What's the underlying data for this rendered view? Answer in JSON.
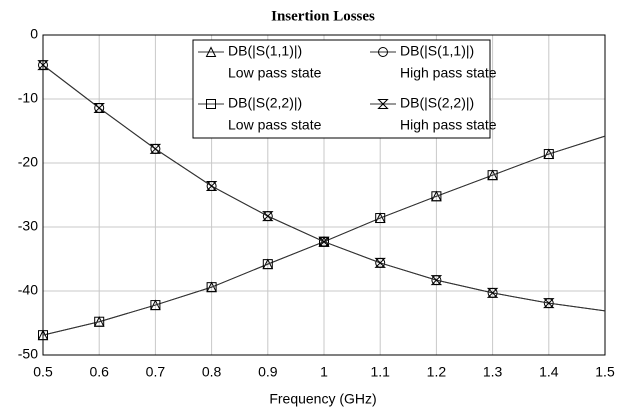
{
  "chart_data": {
    "type": "line",
    "title": "Insertion Losses",
    "x_label": "Frequency (GHz)",
    "x": [
      0.5,
      0.6,
      0.7,
      0.8,
      0.9,
      1.0,
      1.1,
      1.2,
      1.3,
      1.4,
      1.5
    ],
    "series": [
      {
        "name": "DB(|S(1,1)|)",
        "state": "Low pass state",
        "marker": "triangle",
        "color": "#000000",
        "values": [
          -46.9,
          -44.8,
          -42.2,
          -39.4,
          -35.8,
          -32.3,
          -28.6,
          -25.2,
          -21.9,
          -18.6,
          -15.8
        ]
      },
      {
        "name": "DB(|S(1,1)|)",
        "state": "High pass state",
        "marker": "circle",
        "color": "#000000",
        "values": [
          -4.7,
          -11.4,
          -17.8,
          -23.6,
          -28.3,
          -32.3,
          -35.6,
          -38.3,
          -40.3,
          -41.9,
          -43.1
        ]
      },
      {
        "name": "DB(|S(2,2)|)",
        "state": "Low pass state",
        "marker": "square",
        "color": "#000000",
        "values": [
          -46.9,
          -44.8,
          -42.2,
          -39.4,
          -35.8,
          -32.3,
          -28.6,
          -25.2,
          -21.9,
          -18.6,
          -15.8
        ]
      },
      {
        "name": "DB(|S(2,2)|)",
        "state": "High pass state",
        "marker": "hourglass",
        "color": "#000000",
        "values": [
          -4.7,
          -11.4,
          -17.8,
          -23.6,
          -28.3,
          -32.3,
          -35.6,
          -38.3,
          -40.3,
          -41.9,
          -43.1
        ]
      }
    ],
    "xlim": [
      0.5,
      1.5
    ],
    "xticks": [
      0.5,
      0.6,
      0.7,
      0.8,
      0.9,
      1,
      1.1,
      1.2,
      1.3,
      1.4,
      1.5
    ],
    "ylim": [
      -50,
      0
    ],
    "yticks": [
      0,
      -10,
      -20,
      -30,
      -40,
      -50
    ],
    "grid": true
  }
}
